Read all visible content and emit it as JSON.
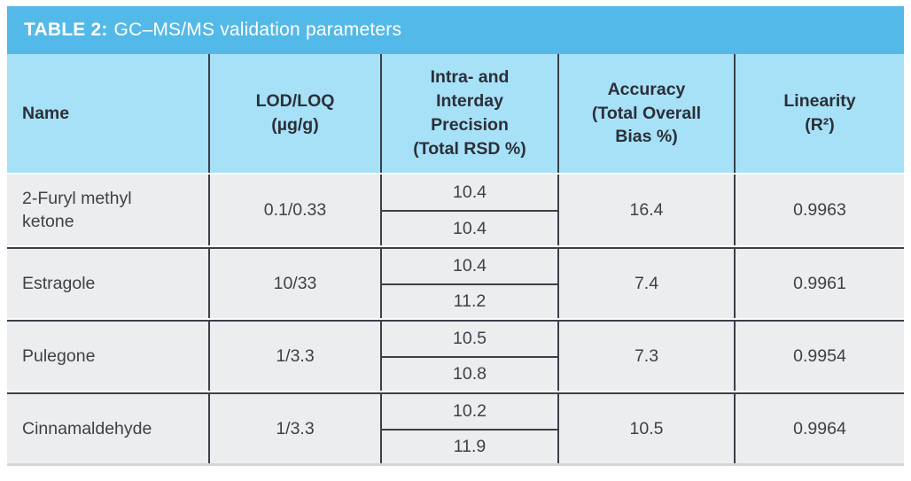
{
  "title": {
    "label": "TABLE 2:",
    "text": "GC–MS/MS validation parameters"
  },
  "colors": {
    "title_bar_bg": "#53B9E8",
    "header_bg": "#A7E1F8",
    "row_bg": "#EBEDEE",
    "border_dark": "#3B3F48",
    "bottom_border": "#D3D6D8",
    "title_text": "#FFFFFF",
    "header_text": "#2C2F37",
    "body_text": "#3E4148"
  },
  "table": {
    "headers": [
      "Name",
      "LOD/LOQ\n(µg/g)",
      "Intra- and\nInterday\nPrecision\n(Total RSD %)",
      "Accuracy\n(Total Overall\nBias %)",
      "Linearity\n(R²)"
    ],
    "rows": [
      {
        "name": "2-Furyl methyl ketone",
        "lod_loq": "0.1/0.33",
        "rsd_intraday": "10.4",
        "rsd_interday": "10.4",
        "accuracy": "16.4",
        "linearity": "0.9963"
      },
      {
        "name": "Estragole",
        "lod_loq": "10/33",
        "rsd_intraday": "10.4",
        "rsd_interday": "11.2",
        "accuracy": "7.4",
        "linearity": "0.9961"
      },
      {
        "name": "Pulegone",
        "lod_loq": "1/3.3",
        "rsd_intraday": "10.5",
        "rsd_interday": "10.8",
        "accuracy": "7.3",
        "linearity": "0.9954"
      },
      {
        "name": "Cinnamaldehyde",
        "lod_loq": "1/3.3",
        "rsd_intraday": "10.2",
        "rsd_interday": "11.9",
        "accuracy": "10.5",
        "linearity": "0.9964"
      }
    ]
  }
}
